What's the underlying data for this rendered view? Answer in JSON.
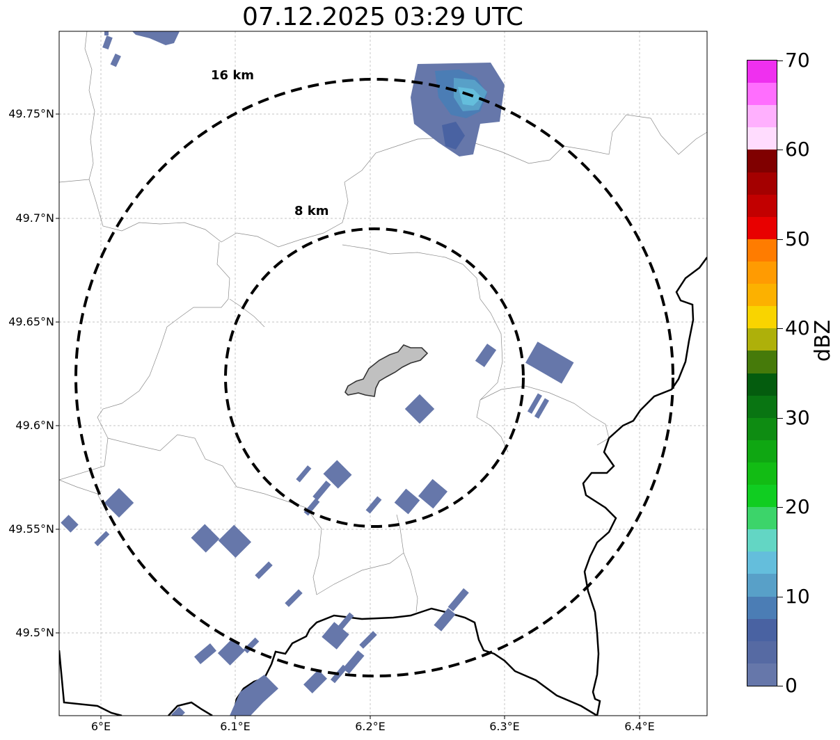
{
  "title": "07.12.2025 03:29 UTC",
  "map": {
    "lat_labels": [
      "49.75°N",
      "49.7°N",
      "49.65°N",
      "49.6°N",
      "49.55°N",
      "49.5°N"
    ],
    "lon_labels": [
      "6°E",
      "6.1°E",
      "6.2°E",
      "6.3°E",
      "6.4°E"
    ],
    "lat_range": [
      49.46,
      49.79
    ],
    "lon_range": [
      5.97,
      6.45
    ],
    "gridlines": true,
    "range_rings": [
      {
        "label": "16 km",
        "radius_km": 16
      },
      {
        "label": "8 km",
        "radius_km": 8
      }
    ],
    "radar_center": {
      "lat": 49.622,
      "lon": 6.2
    },
    "echo_color": "#6677aa",
    "echo_color_strong": "#55b4d4",
    "city_fill": "#c0c0c0"
  },
  "colorbar": {
    "label": "dBZ",
    "min": 0,
    "max": 70,
    "tick_labels": [
      "0",
      "10",
      "20",
      "30",
      "40",
      "50",
      "60",
      "70"
    ],
    "colors": [
      "#6677aa",
      "#566aa3",
      "#4962a2",
      "#4b7db5",
      "#58a0c8",
      "#64bedc",
      "#63d6c4",
      "#3cd46a",
      "#10cd21",
      "#12bc14",
      "#0fa712",
      "#0e8c12",
      "#097512",
      "#045c0e",
      "#467a0a",
      "#aeb00a",
      "#f9d400",
      "#fcb100",
      "#ff9b02",
      "#ff7c00",
      "#e80000",
      "#c20000",
      "#a40000",
      "#800000",
      "#ffdcfe",
      "#ffb0fe",
      "#ff6efe",
      "#ef30ef"
    ]
  }
}
